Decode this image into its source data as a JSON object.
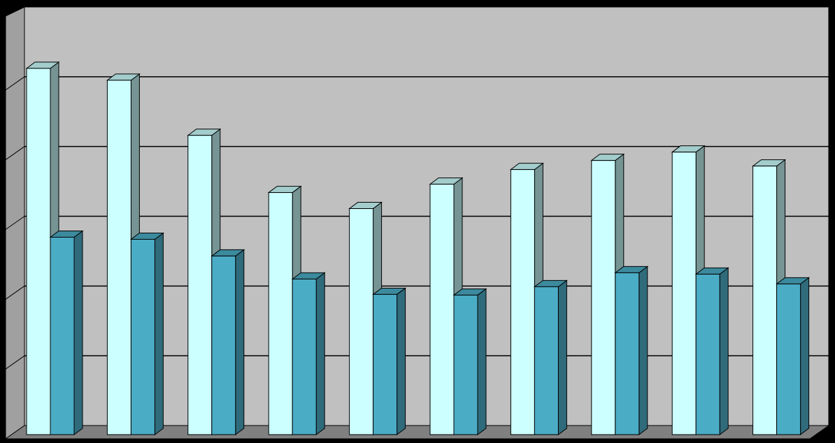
{
  "chart_data": {
    "type": "bar3d",
    "categories": [
      null,
      null,
      null,
      null,
      null,
      null,
      null,
      null,
      null,
      null
    ],
    "series": [
      {
        "color": "#ccffff",
        "values": [
          5.25,
          5.08,
          4.29,
          3.47,
          3.24,
          3.59,
          3.8,
          3.93,
          4.05,
          3.85
        ]
      },
      {
        "color": "#4bacc6",
        "values": [
          2.83,
          2.8,
          2.56,
          2.23,
          2.01,
          2.0,
          2.12,
          2.32,
          2.3,
          2.16
        ]
      }
    ],
    "ylim": [
      0,
      6
    ],
    "grid_lines": [
      1,
      2,
      3,
      4,
      5
    ],
    "grid": true
  }
}
